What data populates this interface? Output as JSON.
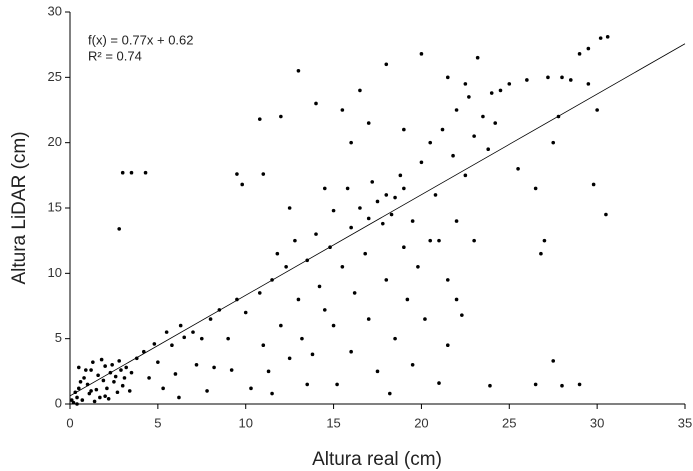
{
  "chart_data": {
    "type": "scatter",
    "xlabel": "Altura real (cm)",
    "ylabel": "Altura LiDAR (cm)",
    "annotations": [
      "f(x) = 0.77x + 0.62",
      "R² = 0.74"
    ],
    "trendline": {
      "slope": 0.77,
      "intercept": 0.62
    },
    "xlim": [
      0,
      35
    ],
    "ylim": [
      0,
      30
    ],
    "xticks": [
      0,
      5,
      10,
      15,
      20,
      25,
      30,
      35
    ],
    "yticks": [
      0,
      5,
      10,
      15,
      20,
      25,
      30
    ],
    "color": "#000000",
    "x": [
      0.2,
      0.4,
      0.5,
      0.7,
      0.8,
      1.0,
      1.1,
      1.2,
      1.3,
      1.5,
      1.6,
      1.7,
      1.8,
      1.9,
      2.0,
      2.1,
      2.2,
      2.3,
      2.4,
      2.5,
      2.6,
      2.7,
      2.8,
      2.9,
      3.0,
      3.1,
      3.2,
      0.3,
      0.6,
      0.9,
      1.4,
      2.0,
      0.1,
      3.4,
      3.5,
      0.5,
      1.2,
      0.4,
      3.8,
      4.2,
      4.5,
      4.8,
      5.0,
      5.3,
      5.5,
      5.8,
      6.0,
      6.3,
      6.5,
      7.0,
      7.2,
      7.5,
      8.0,
      8.2,
      8.5,
      9.0,
      9.2,
      9.5,
      10.0,
      10.3,
      10.8,
      11.0,
      11.3,
      11.5,
      11.8,
      12.0,
      12.3,
      12.5,
      12.8,
      13.0,
      13.2,
      13.5,
      13.8,
      14.0,
      14.2,
      14.5,
      14.8,
      15.0,
      15.0,
      15.2,
      15.5,
      15.8,
      16.0,
      16.0,
      16.2,
      16.5,
      16.8,
      17.0,
      17.0,
      17.2,
      17.5,
      17.5,
      17.8,
      18.0,
      18.0,
      18.2,
      18.3,
      18.5,
      18.5,
      18.8,
      19.0,
      19.0,
      19.2,
      19.5,
      19.8,
      20.0,
      20.2,
      20.5,
      20.8,
      21.0,
      21.2,
      21.5,
      21.8,
      22.0,
      22.0,
      22.3,
      22.5,
      22.7,
      23.0,
      23.0,
      23.2,
      23.5,
      23.8,
      24.0,
      24.2,
      24.5,
      25.0,
      25.5,
      26.0,
      26.5,
      26.8,
      27.0,
      27.2,
      27.5,
      27.8,
      28.0,
      28.5,
      29.0,
      29.5,
      13.0,
      14.0,
      15.5,
      16.5,
      18.0,
      20.0,
      21.5,
      22.5,
      12.5,
      12.0,
      14.5,
      16.0,
      17.0,
      19.0,
      20.5,
      21.5,
      22.0,
      19.5,
      13.5,
      11.5,
      7.8,
      6.2,
      3.0,
      3.5,
      4.3,
      9.5,
      11.0,
      10.8,
      9.8,
      2.8,
      30.2,
      30.6,
      29.5,
      30.0,
      30.5,
      29.8,
      23.9,
      26.5,
      28.0,
      29.0,
      27.5,
      21.0
    ],
    "values": [
      0.1,
      0.5,
      1.2,
      0.3,
      2.0,
      1.5,
      0.8,
      2.6,
      3.2,
      1.1,
      2.2,
      0.5,
      3.4,
      1.8,
      2.9,
      1.2,
      0.4,
      2.4,
      3.0,
      1.7,
      2.1,
      0.9,
      3.3,
      2.6,
      1.4,
      2.0,
      2.8,
      0.9,
      1.7,
      2.6,
      0.2,
      0.6,
      0.3,
      1.0,
      2.4,
      2.8,
      1.0,
      0.0,
      3.5,
      4.0,
      2.0,
      4.6,
      3.2,
      1.2,
      5.5,
      4.5,
      2.3,
      6.0,
      5.1,
      5.5,
      3.0,
      5.0,
      6.5,
      2.8,
      7.2,
      5.0,
      2.6,
      8.0,
      7.0,
      1.2,
      8.5,
      4.5,
      2.5,
      9.5,
      11.5,
      6.0,
      10.5,
      3.5,
      12.5,
      8.0,
      5.0,
      11.0,
      3.8,
      13.0,
      9.0,
      7.2,
      12.0,
      6.0,
      14.8,
      1.5,
      10.5,
      16.5,
      4.0,
      13.5,
      8.5,
      15.0,
      11.5,
      14.2,
      6.5,
      17.0,
      15.5,
      2.5,
      13.8,
      16.0,
      9.5,
      0.8,
      14.5,
      15.8,
      5.0,
      17.5,
      12.0,
      16.5,
      8.0,
      14.0,
      10.5,
      18.5,
      6.5,
      20.0,
      16.0,
      12.5,
      21.0,
      9.5,
      19.0,
      14.0,
      22.5,
      6.8,
      17.5,
      23.5,
      12.5,
      20.5,
      26.5,
      22.0,
      19.5,
      23.8,
      21.5,
      24.0,
      24.5,
      18.0,
      24.8,
      16.5,
      11.5,
      12.5,
      25.0,
      20.0,
      22.0,
      25.0,
      24.8,
      26.8,
      27.2,
      25.5,
      23.0,
      22.5,
      24.0,
      26.0,
      26.8,
      25.0,
      24.5,
      15.0,
      22.0,
      16.5,
      20.0,
      21.5,
      21.0,
      12.5,
      4.5,
      8.0,
      3.0,
      1.5,
      0.8,
      1.0,
      0.5,
      17.7,
      17.7,
      17.7,
      17.6,
      17.6,
      21.8,
      16.8,
      13.4,
      28.0,
      28.1,
      24.5,
      22.5,
      14.5,
      16.8,
      1.4,
      1.5,
      1.4,
      1.5,
      3.3,
      1.6
    ]
  }
}
